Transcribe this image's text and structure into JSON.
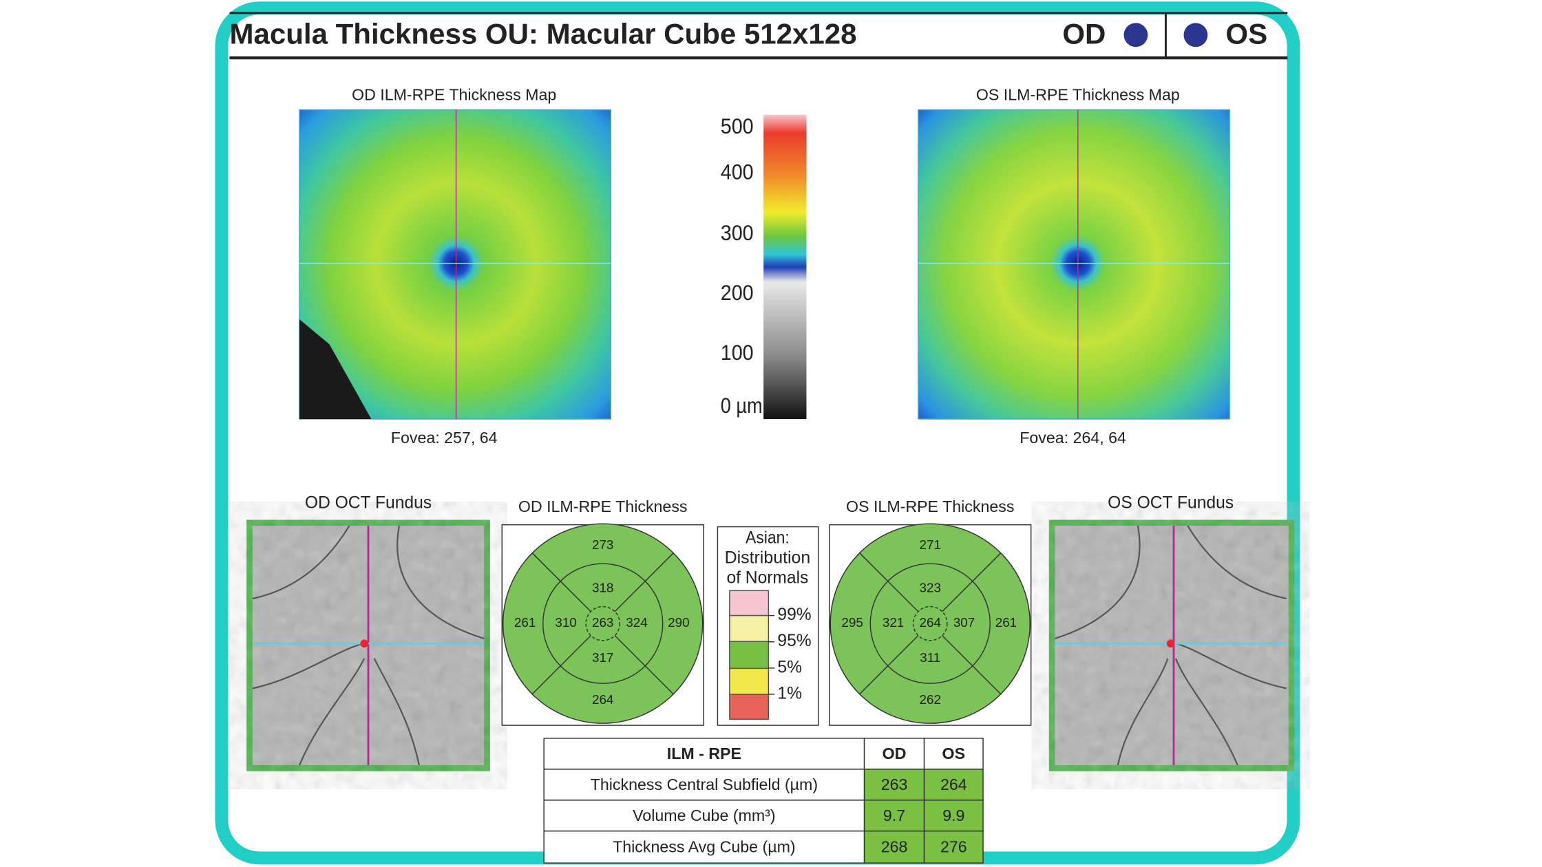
{
  "header": {
    "title": "Macula Thickness OU: Macular Cube 512x128",
    "od_label": "OD",
    "os_label": "OS"
  },
  "maps": [
    {
      "title": "OD ILM-RPE Thickness Map",
      "fovea": "Fovea: 257, 64"
    },
    {
      "title": "OS ILM-RPE Thickness Map",
      "fovea": "Fovea: 264, 64"
    }
  ],
  "color_scale": {
    "labels": [
      "500",
      "400",
      "300",
      "200",
      "100",
      "0 µm"
    ]
  },
  "fundus": [
    {
      "title": "OD OCT Fundus"
    },
    {
      "title": "OS OCT Fundus"
    }
  ],
  "thickness_charts": [
    {
      "title": "OD ILM-RPE Thickness",
      "outer_top": 273,
      "inner_top": 318,
      "outer_left": 261,
      "inner_left": 310,
      "center": 263,
      "inner_right": 324,
      "outer_right": 290,
      "inner_bottom": 317,
      "outer_bottom": 264
    },
    {
      "title": "OS ILM-RPE Thickness",
      "outer_top": 271,
      "inner_top": 323,
      "outer_left": 295,
      "inner_left": 321,
      "center": 264,
      "inner_right": 307,
      "outer_right": 261,
      "inner_bottom": 311,
      "outer_bottom": 262
    }
  ],
  "legend": {
    "title_lines": [
      "Asian:",
      "Distribution",
      "of Normals"
    ],
    "items": [
      "99%",
      "95%",
      "5%",
      "1%"
    ]
  },
  "table": {
    "header": [
      "ILM - RPE",
      "OD",
      "OS"
    ],
    "rows": [
      [
        "Thickness Central Subfield (µm)",
        263,
        264
      ],
      [
        "Volume Cube (mm³)",
        9.7,
        9.9
      ],
      [
        "Thickness Avg Cube (µm)",
        268,
        276
      ]
    ]
  }
}
